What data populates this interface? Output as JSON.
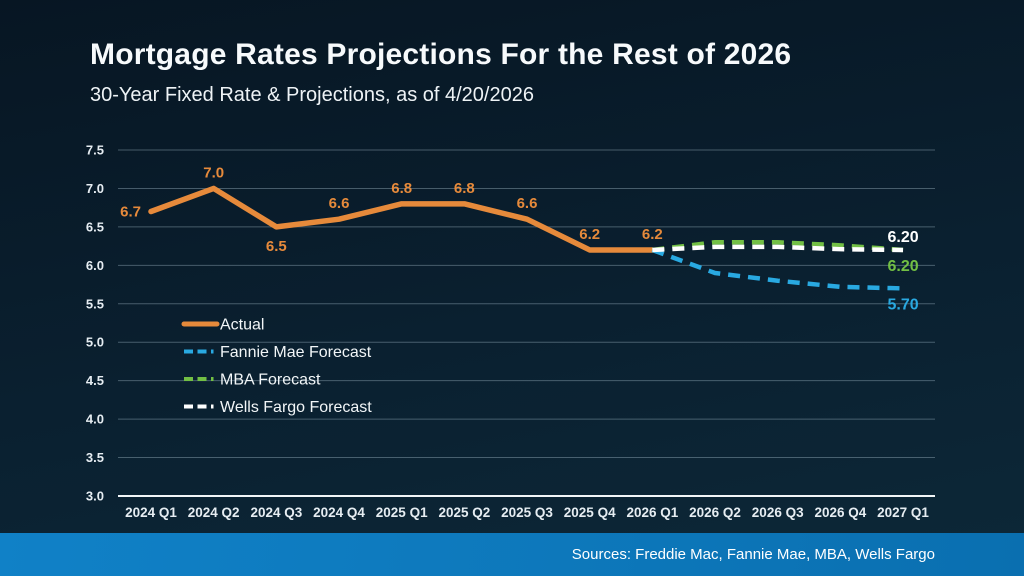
{
  "slide": {
    "title": "Mortgage Rates Projections For the Rest of 2026",
    "subtitle": "30-Year Fixed Rate & Projections, as of 4/20/2026",
    "source_text": "Sources: Freddie Mac, Fannie Mae, MBA, Wells Fargo"
  },
  "colors": {
    "background_top": "#071623",
    "background_bottom": "#0d2838",
    "accent_orange": "#e68a3b",
    "accent_blue": "#29a9e1",
    "accent_green": "#72bf44",
    "white": "#ffffff",
    "gridline": "rgba(173,196,210,0.38)",
    "axis_line": "#f2f6f8",
    "tick_label": "#e6edf2",
    "footer_blue_left": "#1081c7",
    "footer_blue_right": "#0a6fb0"
  },
  "chart_data": {
    "type": "line",
    "title": "Mortgage Rates Projections For the Rest of 2026",
    "subtitle": "30-Year Fixed Rate & Projections, as of 4/20/2026",
    "xlabel": "",
    "ylabel": "",
    "ylim": [
      3.0,
      7.5
    ],
    "y_ticks": [
      7.5,
      7.0,
      6.5,
      6.0,
      5.5,
      5.0,
      4.5,
      4.0,
      3.5,
      3.0
    ],
    "grid": "horizontal",
    "legend_position": "inside-left",
    "categories": [
      "2024 Q1",
      "2024 Q2",
      "2024 Q3",
      "2024 Q4",
      "2025 Q1",
      "2025 Q2",
      "2025 Q3",
      "2025 Q4",
      "2026 Q1",
      "2026 Q2",
      "2026 Q3",
      "2026 Q4",
      "2027 Q1"
    ],
    "series": [
      {
        "name": "Actual",
        "style": "solid",
        "color": "#e68a3b",
        "x_start_index": 0,
        "values": [
          6.7,
          7.0,
          6.5,
          6.6,
          6.8,
          6.8,
          6.6,
          6.2,
          6.2
        ],
        "point_labels": [
          "6.7",
          "7.0",
          "6.5",
          "6.6",
          "6.8",
          "6.8",
          "6.6",
          "6.2",
          "6.2"
        ],
        "point_label_placement": [
          "left",
          "above",
          "below",
          "above",
          "above",
          "above",
          "above",
          "above",
          "above"
        ]
      },
      {
        "name": "Fannie Mae Forecast",
        "style": "dashed",
        "color": "#29a9e1",
        "x_start_index": 8,
        "values": [
          6.2,
          5.9,
          5.8,
          5.72,
          5.7
        ],
        "end_label": "5.70",
        "end_label_placement": "below"
      },
      {
        "name": "MBA Forecast",
        "style": "dashed",
        "color": "#72bf44",
        "x_start_index": 8,
        "values": [
          6.2,
          6.3,
          6.3,
          6.26,
          6.2
        ],
        "end_label": "6.20",
        "end_label_placement": "below"
      },
      {
        "name": "Wells Fargo Forecast",
        "style": "dashed",
        "color": "#ffffff",
        "x_start_index": 8,
        "values": [
          6.2,
          6.24,
          6.24,
          6.21,
          6.2
        ],
        "end_label": "6.20",
        "end_label_placement": "above"
      }
    ],
    "legend": [
      "Actual",
      "Fannie Mae Forecast",
      "MBA Forecast",
      "Wells Fargo Forecast"
    ]
  }
}
